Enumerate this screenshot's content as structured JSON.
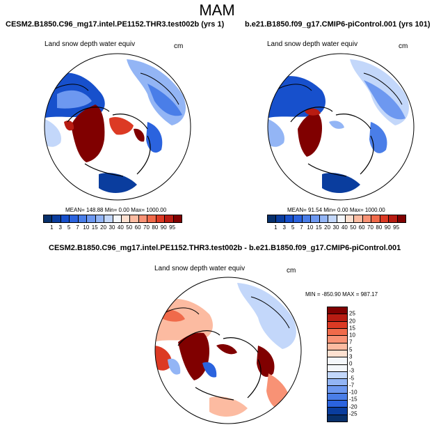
{
  "title": "MAM",
  "variable": "Land snow depth water equiv",
  "unit": "cm",
  "panel_left": {
    "title": "CESM2.B1850.C96_mg17.intel.PE1152.THR3.test002b (yrs 1)",
    "stats": "MEAN= 148.88  Min=   0.00  Max= 1000.00"
  },
  "panel_right": {
    "title": "b.e21.B1850.f09_g17.CMIP6-piControl.001 (yrs 101)",
    "stats": "MEAN= 91.54  Min=   0.00  Max= 1000.00"
  },
  "panel_diff": {
    "title": "CESM2.B1850.C96_mg17.intel.PE1152.THR3.test002b - b.e21.B1850.f09_g17.CMIP6-piControl.001",
    "stats": "MIN = -850.90 MAX = 987.17"
  },
  "colorbar_abs": {
    "labels": [
      "1",
      "3",
      "5",
      "7",
      "10",
      "15",
      "20",
      "30",
      "40",
      "50",
      "60",
      "70",
      "80",
      "90",
      "95"
    ],
    "colors": [
      "#08306b",
      "#0a3d9e",
      "#1750cc",
      "#2b63de",
      "#4a7ee8",
      "#6d98f0",
      "#93b5f5",
      "#c3d7fa",
      "#f4f7fb",
      "#fde0d0",
      "#fcbba1",
      "#f89275",
      "#f06a4a",
      "#dc3a24",
      "#b81c12",
      "#800000"
    ]
  },
  "colorbar_diff": {
    "labels": [
      "25",
      "20",
      "15",
      "10",
      "7",
      "5",
      "3",
      "0",
      "-3",
      "-5",
      "-7",
      "-10",
      "-15",
      "-20",
      "-25"
    ],
    "colors": [
      "#800000",
      "#b81c12",
      "#dc3a24",
      "#f06a4a",
      "#f89275",
      "#fcbba1",
      "#fde0d0",
      "#f4f7fb",
      "#f4f7fb",
      "#c3d7fa",
      "#93b5f5",
      "#6d98f0",
      "#4a7ee8",
      "#2b63de",
      "#0a3d9e",
      "#08306b"
    ]
  }
}
